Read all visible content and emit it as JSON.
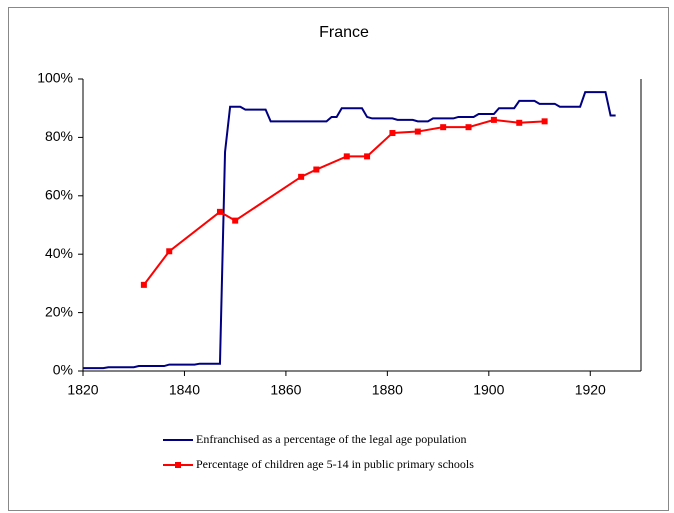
{
  "chart_data": {
    "type": "line",
    "title": "France",
    "xlim": [
      1820,
      1930
    ],
    "xticks": [
      1820,
      1840,
      1860,
      1880,
      1900,
      1920
    ],
    "ylim": [
      0,
      100
    ],
    "yticks": [
      {
        "value": 0,
        "label": "0%"
      },
      {
        "value": 20,
        "label": "20%"
      },
      {
        "value": 40,
        "label": "40%"
      },
      {
        "value": 60,
        "label": "60%"
      },
      {
        "value": 80,
        "label": "80%"
      },
      {
        "value": 100,
        "label": "100%"
      }
    ],
    "grid": false,
    "legend": "bottom",
    "series": [
      {
        "name": "Enfranchised as a percentage of the legal age population",
        "color": "#000080",
        "marker": "none",
        "x": [
          1820,
          1824,
          1825,
          1830,
          1831,
          1836,
          1837,
          1842,
          1843,
          1847,
          1848,
          1849,
          1851,
          1852,
          1856,
          1857,
          1868,
          1869,
          1870,
          1871,
          1875,
          1876,
          1877,
          1881,
          1882,
          1885,
          1886,
          1888,
          1889,
          1893,
          1894,
          1897,
          1898,
          1901,
          1902,
          1905,
          1906,
          1909,
          1910,
          1913,
          1914,
          1918,
          1919,
          1923,
          1924,
          1925
        ],
        "values": [
          1,
          1,
          1.3,
          1.3,
          1.7,
          1.7,
          2.2,
          2.2,
          2.5,
          2.5,
          75,
          90.5,
          90.5,
          89.5,
          89.5,
          85.5,
          85.5,
          87,
          87,
          90,
          90,
          87,
          86.5,
          86.5,
          86,
          86,
          85.5,
          85.5,
          86.5,
          86.5,
          87,
          87,
          88,
          88,
          90,
          90,
          92.5,
          92.5,
          91.5,
          91.5,
          90.5,
          90.5,
          95.5,
          95.5,
          87.5,
          87.5
        ]
      },
      {
        "name": "Percentage of children age 5-14 in public primary schools",
        "color": "#ff0000",
        "marker": "square",
        "x": [
          1832,
          1837,
          1847,
          1850,
          1863,
          1866,
          1872,
          1876,
          1881,
          1886,
          1891,
          1896,
          1901,
          1906,
          1911
        ],
        "values": [
          29.5,
          41,
          54.5,
          51.5,
          66.5,
          69,
          73.5,
          73.5,
          81.5,
          82,
          83.5,
          83.5,
          86,
          85,
          85.5
        ]
      }
    ]
  }
}
